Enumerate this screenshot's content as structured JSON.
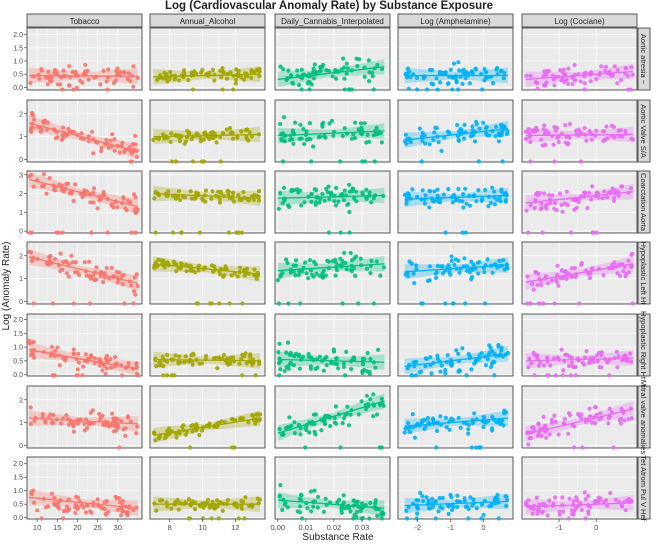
{
  "colors": {
    "series": [
      "#F8766D",
      "#A3A500",
      "#00BF7D",
      "#00B0F6",
      "#E76BF3"
    ],
    "panel_bg": "#EBEBEB",
    "grid": "#FFFFFF",
    "strip_bg": "#D9D9D9",
    "strip_border": "#333333",
    "text": "#222222",
    "tick_text": "#4D4D4D"
  },
  "chart_data": {
    "type": "scatter",
    "title": "Log (Cardiovascular Anomaly Rate) by Substance Exposure",
    "xlabel": "Substance Rate",
    "ylabel": "Log (Anomaly Rate)",
    "smoother": "linear fit with confidence band",
    "grid": true,
    "columns": [
      {
        "name": "Tobacco",
        "xlim": [
          7.5,
          36
        ],
        "ticks": [
          10,
          15,
          20,
          25,
          30
        ],
        "tick_labels": [
          "10",
          "15",
          "20",
          "25",
          "30"
        ],
        "x_range": [
          8,
          35
        ],
        "spread": 1.0
      },
      {
        "name": "Annual_Alcohol",
        "xlim": [
          6.8,
          13.8
        ],
        "ticks": [
          8,
          10,
          12
        ],
        "tick_labels": [
          "8",
          "10",
          "12"
        ],
        "x_range": [
          7,
          13.5
        ],
        "spread": 0.6
      },
      {
        "name": "Daily_Cannabis_Interpolated",
        "xlim": [
          -0.001,
          0.04
        ],
        "ticks": [
          0,
          0.01,
          0.02,
          0.03
        ],
        "tick_labels": [
          "0.00",
          "0.01",
          "0.02",
          "0.03"
        ],
        "x_range": [
          0,
          0.038
        ],
        "spread": 1.2
      },
      {
        "name": "Log (Amphetamine)",
        "xlim": [
          -2.6,
          0.9
        ],
        "ticks": [
          -2,
          -1,
          0
        ],
        "tick_labels": [
          "-2",
          "-1",
          "0"
        ],
        "x_range": [
          -2.4,
          0.75
        ],
        "spread": 1.0
      },
      {
        "name": "Log (Cociane)",
        "xlim": [
          -2.0,
          1.1
        ],
        "ticks": [
          -1,
          0
        ],
        "tick_labels": [
          "-1",
          "0"
        ],
        "x_range": [
          -1.9,
          1.0
        ],
        "spread": 1.0
      }
    ],
    "rows": [
      {
        "name": "Aortic atresia ~",
        "ylim": [
          -0.1,
          2.25
        ],
        "ticks": [
          0,
          0.5,
          1,
          1.5,
          2
        ],
        "tick_labels": [
          "0.0",
          "0.5",
          "1.0",
          "1.5",
          "2.0"
        ],
        "fits": [
          [
            0.45,
            0.42
          ],
          [
            0.4,
            0.5
          ],
          [
            0.3,
            0.78
          ],
          [
            0.45,
            0.45
          ],
          [
            0.3,
            0.6
          ]
        ]
      },
      {
        "name": "Aortic Valve S/A",
        "ylim": [
          -0.1,
          2.6
        ],
        "ticks": [
          0,
          1,
          2
        ],
        "tick_labels": [
          "0",
          "1",
          "2"
        ],
        "fits": [
          [
            1.6,
            0.35
          ],
          [
            1.0,
            1.1
          ],
          [
            1.05,
            1.25
          ],
          [
            0.85,
            1.35
          ],
          [
            1.05,
            1.1
          ]
        ]
      },
      {
        "name": "Coarctation Aorta",
        "ylim": [
          -0.1,
          3.2
        ],
        "ticks": [
          0,
          1,
          2,
          3
        ],
        "tick_labels": [
          "0",
          "1",
          "2",
          "3"
        ],
        "fits": [
          [
            2.75,
            1.3
          ],
          [
            2.0,
            1.75
          ],
          [
            1.75,
            1.9
          ],
          [
            1.7,
            1.9
          ],
          [
            1.5,
            2.1
          ]
        ]
      },
      {
        "name": "Hypoplastic Left Ht",
        "ylim": [
          -0.1,
          2.6
        ],
        "ticks": [
          0,
          1,
          2
        ],
        "tick_labels": [
          "0",
          "1",
          "2"
        ],
        "fits": [
          [
            1.95,
            0.8
          ],
          [
            1.65,
            1.2
          ],
          [
            1.35,
            1.65
          ],
          [
            1.3,
            1.6
          ],
          [
            0.85,
            1.65
          ]
        ]
      },
      {
        "name": "Hypoplastic Right Ht",
        "ylim": [
          -0.05,
          2.2
        ],
        "ticks": [
          0,
          0.5,
          1,
          1.5,
          2
        ],
        "tick_labels": [
          "0.0",
          "0.5",
          "1.0",
          "1.5",
          "2.0"
        ],
        "fits": [
          [
            0.9,
            0.2
          ],
          [
            0.55,
            0.5
          ],
          [
            0.55,
            0.45
          ],
          [
            0.3,
            0.75
          ],
          [
            0.5,
            0.6
          ]
        ]
      },
      {
        "name": "Mitral valve anomalies",
        "ylim": [
          -0.1,
          2.6
        ],
        "ticks": [
          0,
          1,
          2
        ],
        "tick_labels": [
          "0",
          "1",
          "2"
        ],
        "fits": [
          [
            1.2,
            0.95
          ],
          [
            0.45,
            1.2
          ],
          [
            0.55,
            1.95
          ],
          [
            0.85,
            1.2
          ],
          [
            0.5,
            1.6
          ]
        ]
      },
      {
        "name": "Tet Atrom Pul V Hef",
        "ylim": [
          -0.05,
          2.25
        ],
        "ticks": [
          0,
          0.5,
          1,
          1.5,
          2
        ],
        "tick_labels": [
          "0.0",
          "0.5",
          "1.0",
          "1.5",
          "2.0"
        ],
        "fits": [
          [
            0.75,
            0.35
          ],
          [
            0.5,
            0.5
          ],
          [
            0.65,
            0.35
          ],
          [
            0.45,
            0.6
          ],
          [
            0.4,
            0.55
          ]
        ]
      }
    ]
  }
}
